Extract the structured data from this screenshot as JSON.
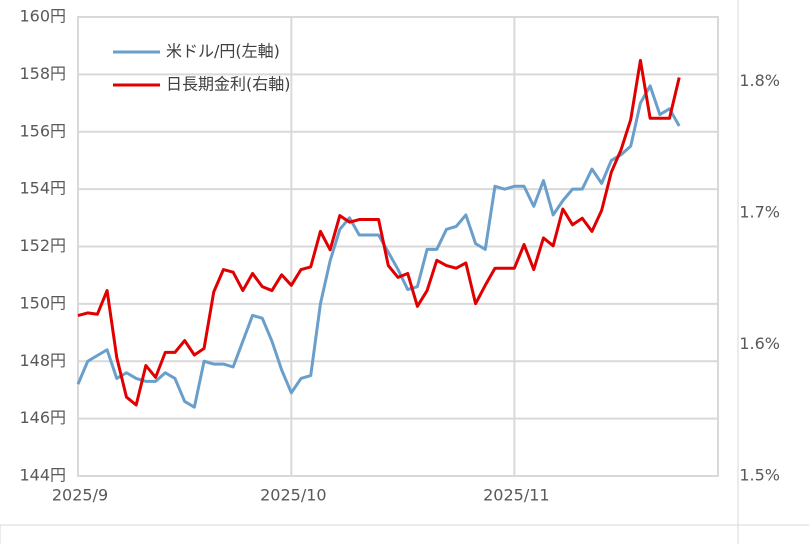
{
  "chart_data": {
    "type": "line",
    "categories": [
      "2025/9",
      null,
      null,
      null,
      null,
      null,
      null,
      null,
      null,
      null,
      null,
      null,
      null,
      null,
      null,
      null,
      null,
      null,
      null,
      null,
      null,
      null,
      "2025/10",
      null,
      null,
      null,
      null,
      null,
      null,
      null,
      null,
      null,
      null,
      null,
      null,
      null,
      null,
      null,
      null,
      null,
      null,
      null,
      null,
      null,
      null,
      "2025/11",
      null,
      null,
      null,
      null,
      null,
      null,
      null,
      null,
      null,
      null,
      null,
      null,
      null,
      null,
      null,
      null,
      null,
      null,
      null,
      null
    ],
    "series": [
      {
        "name": "米ドル/円(左軸)",
        "color": "#6a9ecb",
        "axis": "y",
        "values": [
          147.2,
          148.0,
          148.2,
          148.4,
          147.4,
          147.6,
          147.4,
          147.3,
          147.3,
          147.6,
          147.4,
          146.6,
          146.4,
          148.0,
          147.9,
          147.9,
          147.8,
          148.7,
          149.6,
          149.5,
          148.7,
          147.7,
          146.9,
          147.4,
          147.5,
          150.0,
          151.5,
          152.6,
          153.0,
          152.4,
          152.4,
          152.4,
          151.8,
          151.2,
          150.5,
          150.6,
          151.9,
          151.9,
          152.6,
          152.7,
          153.1,
          152.1,
          151.9,
          154.1,
          154.0,
          154.1,
          154.1,
          153.4,
          154.3,
          153.1,
          153.6,
          154.0,
          154.0,
          154.7,
          154.2,
          155.0,
          155.2,
          155.5,
          157.0,
          157.6,
          156.6,
          156.8,
          156.2,
          null,
          null,
          null
        ]
      },
      {
        "name": "日長期金利(右軸)",
        "color": "#e00000",
        "axis": "y2",
        "values": [
          1.622,
          1.624,
          1.623,
          1.641,
          1.59,
          1.56,
          1.554,
          1.584,
          1.575,
          1.594,
          1.594,
          1.603,
          1.592,
          1.597,
          1.64,
          1.657,
          1.655,
          1.641,
          1.654,
          1.644,
          1.641,
          1.653,
          1.645,
          1.657,
          1.659,
          1.686,
          1.672,
          1.698,
          1.693,
          1.695,
          1.695,
          1.695,
          1.66,
          1.651,
          1.654,
          1.629,
          1.641,
          1.664,
          1.66,
          1.658,
          1.662,
          1.631,
          1.645,
          1.658,
          1.658,
          1.658,
          1.676,
          1.657,
          1.681,
          1.675,
          1.703,
          1.691,
          1.696,
          1.686,
          1.702,
          1.731,
          1.748,
          1.771,
          1.816,
          1.772,
          1.772,
          1.772,
          1.803,
          null,
          null,
          null
        ]
      }
    ],
    "ylim": [
      144,
      160
    ],
    "yticks": [
      {
        "value": 144,
        "label": "144円"
      },
      {
        "value": 146,
        "label": "146円"
      },
      {
        "value": 148,
        "label": "148円"
      },
      {
        "value": 150,
        "label": "150円"
      },
      {
        "value": 152,
        "label": "152円"
      },
      {
        "value": 154,
        "label": "154円"
      },
      {
        "value": 156,
        "label": "156円"
      },
      {
        "value": 158,
        "label": "158円"
      },
      {
        "value": 160,
        "label": "160円"
      }
    ],
    "y2lim": [
      1.5,
      1.849
    ],
    "y2ticks": [
      {
        "value": 1.5,
        "label": "1.5%"
      },
      {
        "value": 1.6,
        "label": "1.6%"
      },
      {
        "value": 1.7,
        "label": "1.7%"
      },
      {
        "value": 1.8,
        "label": "1.8%"
      }
    ],
    "grid": true,
    "legend": "upper left"
  }
}
